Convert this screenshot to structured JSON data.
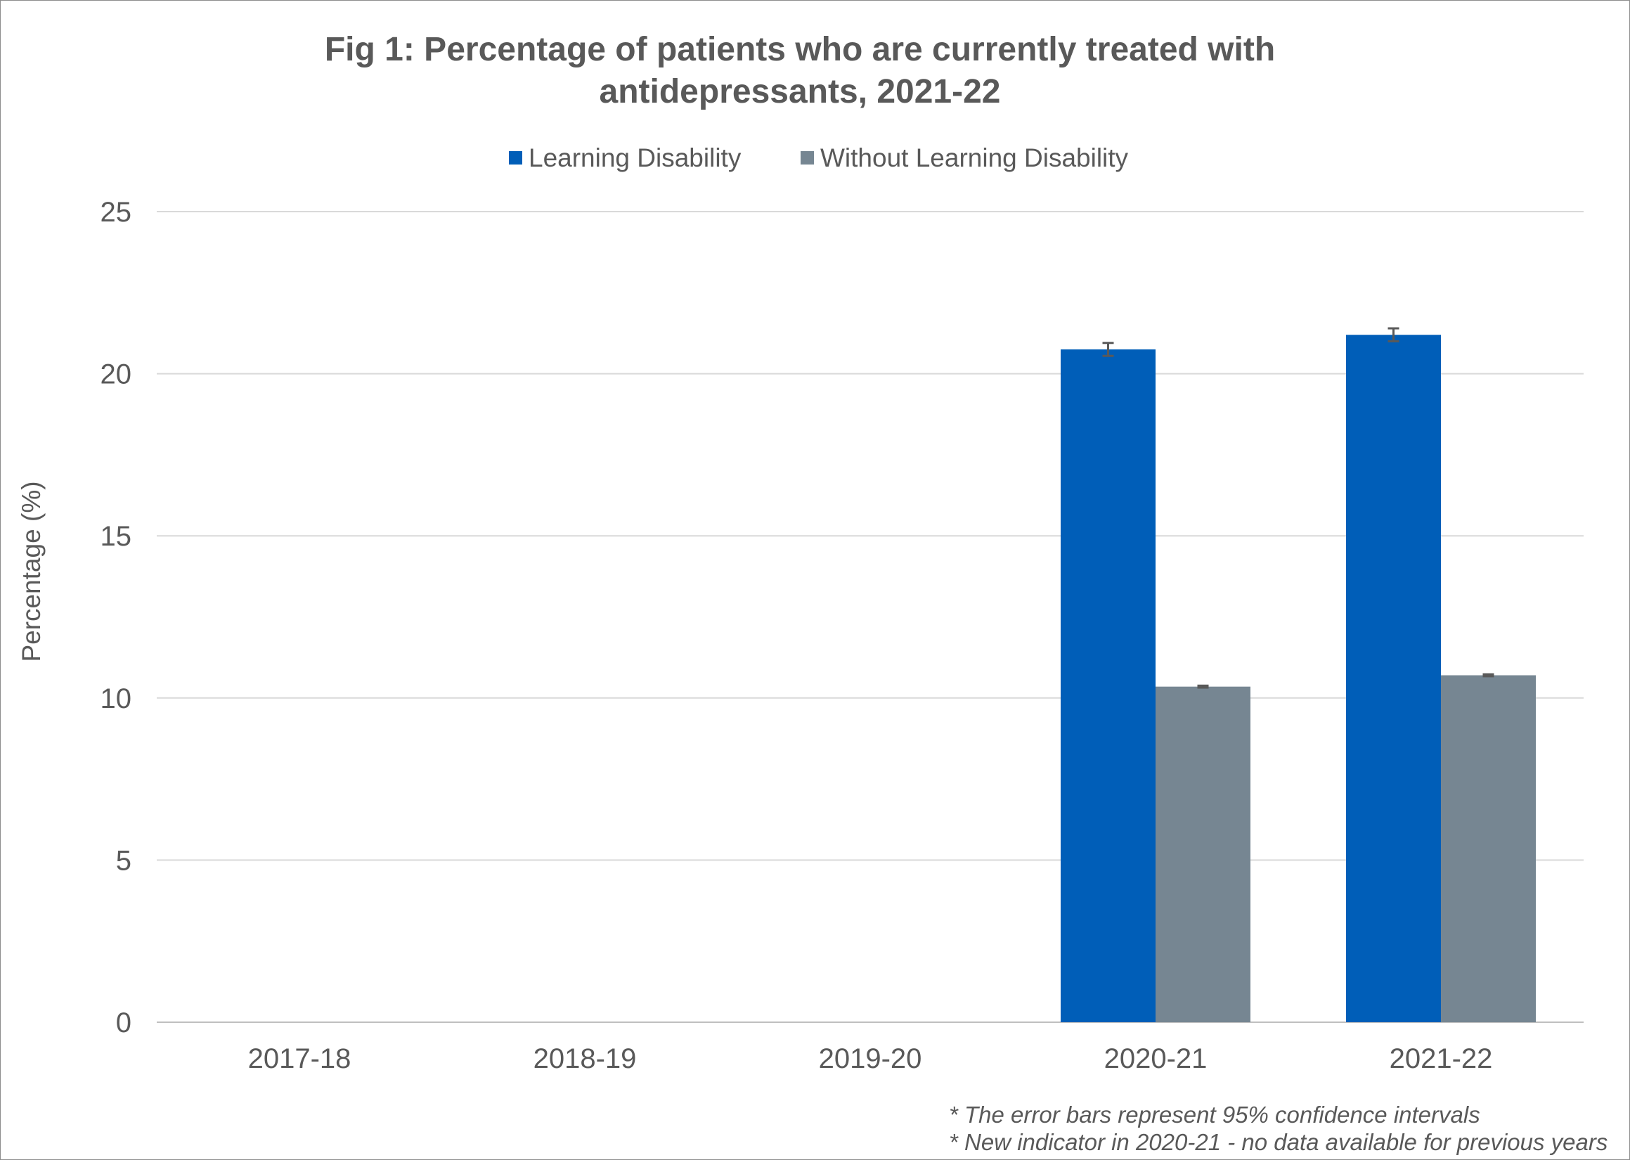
{
  "chart_data": {
    "type": "bar",
    "title_lines": [
      "Fig 1: Percentage of patients who are currently treated with",
      "antidepressants, 2021-22"
    ],
    "xlabel": "",
    "ylabel": "Percentage (%)",
    "ylim": [
      0,
      25
    ],
    "yticks": [
      "0",
      "5",
      "10",
      "15",
      "20",
      "25"
    ],
    "categories": [
      "2017-18",
      "2018-19",
      "2019-20",
      "2020-21",
      "2021-22"
    ],
    "series": [
      {
        "name": "Learning Disability",
        "color": "#005EB8",
        "values": [
          null,
          null,
          null,
          20.75,
          21.2
        ],
        "ci_low": [
          null,
          null,
          null,
          20.55,
          21.0
        ],
        "ci_high": [
          null,
          null,
          null,
          20.95,
          21.4
        ]
      },
      {
        "name": "Without Learning Disability",
        "color": "#768692",
        "values": [
          null,
          null,
          null,
          10.35,
          10.7
        ],
        "ci_low": [
          null,
          null,
          null,
          10.32,
          10.67
        ],
        "ci_high": [
          null,
          null,
          null,
          10.38,
          10.73
        ]
      }
    ],
    "error_bar_color": "#595959",
    "gridlines": true,
    "legend_position": "top",
    "notes": [
      "* The error bars represent 95% confidence intervals",
      "* New indicator in 2020-21 - no data available for previous years"
    ]
  }
}
